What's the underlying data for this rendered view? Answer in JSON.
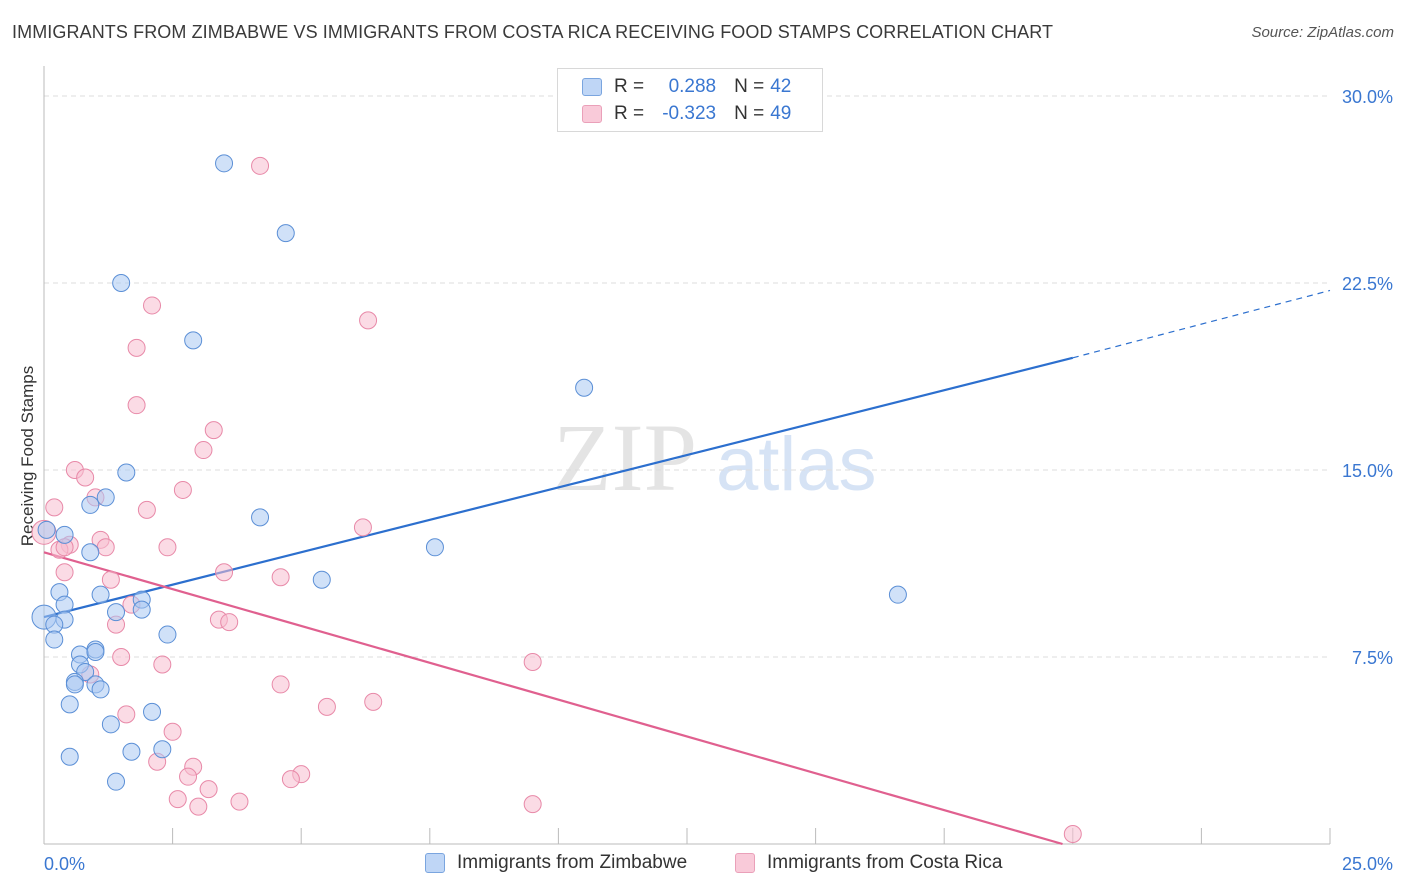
{
  "header": {
    "title": "IMMIGRANTS FROM ZIMBABWE VS IMMIGRANTS FROM COSTA RICA RECEIVING FOOD STAMPS CORRELATION CHART",
    "source": "Source: ZipAtlas.com"
  },
  "watermark": {
    "zip": "ZIP",
    "atlas": "atlas"
  },
  "legend": {
    "rows": [
      {
        "r_label": "R =",
        "r_value": "0.288",
        "n_label": "N =",
        "n_value": "42"
      },
      {
        "r_label": "R =",
        "r_value": "-0.323",
        "n_label": "N =",
        "n_value": "49"
      }
    ]
  },
  "bottom_legend": {
    "zimbabwe": "Immigrants from Zimbabwe",
    "costa_rica": "Immigrants from Costa Rica"
  },
  "colors": {
    "zimbabwe_fill": "#aac8f2",
    "zimbabwe_stroke": "#5b8fd6",
    "zimbabwe_line": "#2c6fce",
    "costa_rica_fill": "#f7bdd0",
    "costa_rica_stroke": "#e889a8",
    "costa_rica_line": "#e0608f",
    "tick_text": "#3a77d1",
    "grid": "#dddddd"
  },
  "chart_data": {
    "type": "scatter",
    "title": "IMMIGRANTS FROM ZIMBABWE VS IMMIGRANTS FROM COSTA RICA RECEIVING FOOD STAMPS CORRELATION CHART",
    "xlabel": "",
    "ylabel": "Receiving Food Stamps",
    "xlim": [
      0,
      25
    ],
    "ylim": [
      0,
      30
    ],
    "y_ticks": [
      7.5,
      15.0,
      22.5,
      30.0
    ],
    "y_tick_labels": [
      "7.5%",
      "15.0%",
      "22.5%",
      "30.0%"
    ],
    "x_tick_labels": [
      "0.0%",
      "25.0%"
    ],
    "grid": true,
    "legend_position": "top-center",
    "series": [
      {
        "name": "Immigrants from Zimbabwe",
        "r": 0.288,
        "n": 42,
        "trend": {
          "x0": 0,
          "y0": 9.1,
          "x1": 20.0,
          "y1": 19.5,
          "dashed_to_x": 25.0,
          "dashed_to_y": 22.2
        },
        "points": [
          [
            3.5,
            27.3
          ],
          [
            4.7,
            24.5
          ],
          [
            1.5,
            22.5
          ],
          [
            2.9,
            20.2
          ],
          [
            10.5,
            18.3
          ],
          [
            1.6,
            14.9
          ],
          [
            1.2,
            13.9
          ],
          [
            0.9,
            13.6
          ],
          [
            4.2,
            13.1
          ],
          [
            0.4,
            12.4
          ],
          [
            7.6,
            11.9
          ],
          [
            0.9,
            11.7
          ],
          [
            5.4,
            10.6
          ],
          [
            0.3,
            10.1
          ],
          [
            1.1,
            10.0
          ],
          [
            16.6,
            10.0
          ],
          [
            1.9,
            9.8
          ],
          [
            0.4,
            9.6
          ],
          [
            1.4,
            9.3
          ],
          [
            1.9,
            9.4
          ],
          [
            0.0,
            9.1
          ],
          [
            0.4,
            9.0
          ],
          [
            0.2,
            8.8
          ],
          [
            2.4,
            8.4
          ],
          [
            0.2,
            8.2
          ],
          [
            1.0,
            7.8
          ],
          [
            0.7,
            7.6
          ],
          [
            1.0,
            7.7
          ],
          [
            0.7,
            7.2
          ],
          [
            0.8,
            6.9
          ],
          [
            0.6,
            6.5
          ],
          [
            0.6,
            6.4
          ],
          [
            1.0,
            6.4
          ],
          [
            1.1,
            6.2
          ],
          [
            0.5,
            5.6
          ],
          [
            2.1,
            5.3
          ],
          [
            1.3,
            4.8
          ],
          [
            1.7,
            3.7
          ],
          [
            0.5,
            3.5
          ],
          [
            2.3,
            3.8
          ],
          [
            1.4,
            2.5
          ],
          [
            0.05,
            12.6
          ]
        ]
      },
      {
        "name": "Immigrants from Costa Rica",
        "r": -0.323,
        "n": 49,
        "trend": {
          "x0": 0,
          "y0": 11.7,
          "x1": 19.8,
          "y1": 0.0
        },
        "points": [
          [
            4.2,
            27.2
          ],
          [
            2.1,
            21.6
          ],
          [
            6.3,
            21.0
          ],
          [
            1.8,
            19.9
          ],
          [
            1.8,
            17.6
          ],
          [
            3.3,
            16.6
          ],
          [
            3.1,
            15.8
          ],
          [
            0.6,
            15.0
          ],
          [
            0.8,
            14.7
          ],
          [
            2.7,
            14.2
          ],
          [
            1.0,
            13.9
          ],
          [
            0.2,
            13.5
          ],
          [
            2.0,
            13.4
          ],
          [
            6.2,
            12.7
          ],
          [
            0.0,
            12.5
          ],
          [
            1.1,
            12.2
          ],
          [
            0.5,
            12.0
          ],
          [
            0.3,
            11.8
          ],
          [
            0.4,
            11.9
          ],
          [
            1.2,
            11.9
          ],
          [
            2.4,
            11.9
          ],
          [
            0.4,
            10.9
          ],
          [
            3.5,
            10.9
          ],
          [
            4.6,
            10.7
          ],
          [
            1.3,
            10.6
          ],
          [
            1.7,
            9.6
          ],
          [
            3.4,
            9.0
          ],
          [
            3.6,
            8.9
          ],
          [
            1.4,
            8.8
          ],
          [
            1.5,
            7.5
          ],
          [
            9.5,
            7.3
          ],
          [
            2.3,
            7.2
          ],
          [
            0.9,
            6.8
          ],
          [
            4.6,
            6.4
          ],
          [
            6.4,
            5.7
          ],
          [
            5.5,
            5.5
          ],
          [
            1.6,
            5.2
          ],
          [
            2.5,
            4.5
          ],
          [
            2.2,
            3.3
          ],
          [
            2.9,
            3.1
          ],
          [
            5.0,
            2.8
          ],
          [
            2.8,
            2.7
          ],
          [
            4.8,
            2.6
          ],
          [
            3.2,
            2.2
          ],
          [
            2.6,
            1.8
          ],
          [
            3.8,
            1.7
          ],
          [
            3.0,
            1.5
          ],
          [
            9.5,
            1.6
          ],
          [
            20.0,
            0.4
          ]
        ]
      }
    ]
  }
}
